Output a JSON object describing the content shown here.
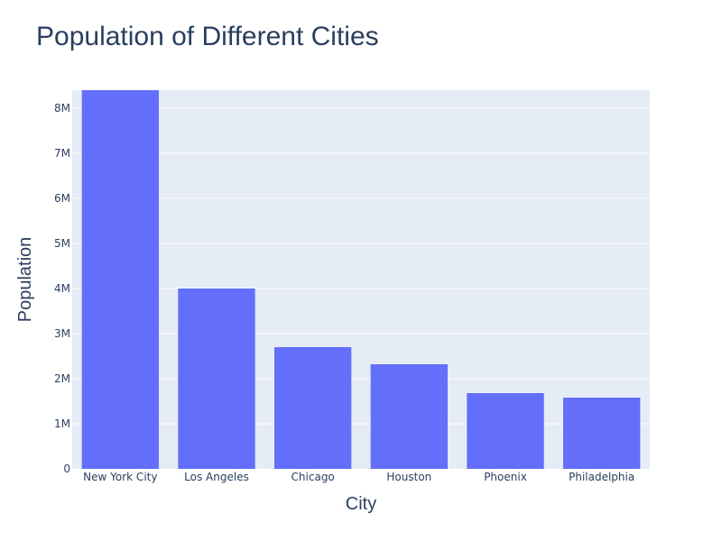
{
  "chart_data": {
    "type": "bar",
    "title": "Population of Different Cities",
    "xlabel": "City",
    "ylabel": "Population",
    "categories": [
      "New York City",
      "Los Angeles",
      "Chicago",
      "Houston",
      "Phoenix",
      "Philadelphia"
    ],
    "values": [
      8400000,
      4000000,
      2700000,
      2320000,
      1680000,
      1580000
    ],
    "ylim": [
      0,
      8400000
    ],
    "yticks": [
      0,
      1000000,
      2000000,
      3000000,
      4000000,
      5000000,
      6000000,
      7000000,
      8000000
    ],
    "ytick_labels": [
      "0",
      "1M",
      "2M",
      "3M",
      "4M",
      "5M",
      "6M",
      "7M",
      "8M"
    ],
    "grid": true,
    "colors": {
      "bar": "#636efa",
      "plot_background": "#e5ecf6",
      "grid": "#ffffff",
      "text": "#2a3f5f"
    }
  }
}
